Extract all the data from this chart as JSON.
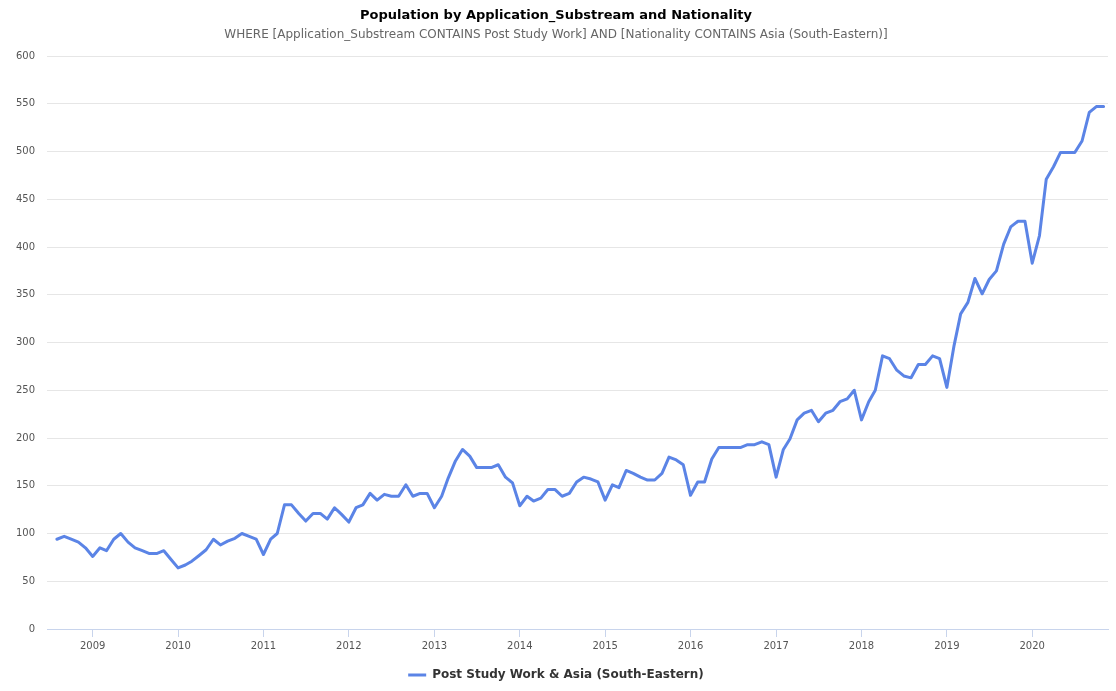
{
  "chart_data": {
    "type": "line",
    "title": "Population by Application_Substream and Nationality",
    "subtitle": "WHERE [Application_Substream CONTAINS Post Study Work] AND [Nationality CONTAINS Asia (South-Eastern)]",
    "x": [
      "2008-08",
      "2008-09",
      "2008-10",
      "2008-11",
      "2008-12",
      "2009-01",
      "2009-02",
      "2009-03",
      "2009-04",
      "2009-05",
      "2009-06",
      "2009-07",
      "2009-08",
      "2009-09",
      "2009-10",
      "2009-11",
      "2009-12",
      "2010-01",
      "2010-02",
      "2010-03",
      "2010-04",
      "2010-05",
      "2010-06",
      "2010-07",
      "2010-08",
      "2010-09",
      "2010-10",
      "2010-11",
      "2010-12",
      "2011-01",
      "2011-02",
      "2011-03",
      "2011-04",
      "2011-05",
      "2011-06",
      "2011-07",
      "2011-08",
      "2011-09",
      "2011-10",
      "2011-11",
      "2011-12",
      "2012-01",
      "2012-02",
      "2012-03",
      "2012-04",
      "2012-05",
      "2012-06",
      "2012-07",
      "2012-08",
      "2012-09",
      "2012-10",
      "2012-11",
      "2012-12",
      "2013-01",
      "2013-02",
      "2013-03",
      "2013-04",
      "2013-05",
      "2013-06",
      "2013-07",
      "2013-08",
      "2013-09",
      "2013-10",
      "2013-11",
      "2013-12",
      "2014-01",
      "2014-02",
      "2014-03",
      "2014-04",
      "2014-05",
      "2014-06",
      "2014-07",
      "2014-08",
      "2014-09",
      "2014-10",
      "2014-11",
      "2014-12",
      "2015-01",
      "2015-02",
      "2015-03",
      "2015-04",
      "2015-05",
      "2015-06",
      "2015-07",
      "2015-08",
      "2015-09",
      "2015-10",
      "2015-11",
      "2015-12",
      "2016-01",
      "2016-02",
      "2016-03",
      "2016-04",
      "2016-05",
      "2016-06",
      "2016-07",
      "2016-08",
      "2016-09",
      "2016-10",
      "2016-11",
      "2016-12",
      "2017-01",
      "2017-02",
      "2017-03",
      "2017-04",
      "2017-05",
      "2017-06",
      "2017-07",
      "2017-08",
      "2017-09",
      "2017-10",
      "2017-11",
      "2017-12",
      "2018-01",
      "2018-02",
      "2018-03",
      "2018-04",
      "2018-05",
      "2018-06",
      "2018-07",
      "2018-08",
      "2018-09",
      "2018-10",
      "2018-11",
      "2018-12",
      "2019-01",
      "2019-02",
      "2019-03",
      "2019-04",
      "2019-05",
      "2019-06",
      "2019-07",
      "2019-08",
      "2019-09",
      "2019-10",
      "2019-11",
      "2019-12",
      "2020-01",
      "2020-02",
      "2020-03",
      "2020-04",
      "2020-05",
      "2020-06",
      "2020-07",
      "2020-08",
      "2020-09",
      "2020-10",
      "2020-11"
    ],
    "series": [
      {
        "name": "Post Study Work & Asia (South-Eastern)",
        "color": "#5b84e6",
        "values": [
          94,
          97,
          94,
          91,
          85,
          76,
          85,
          82,
          94,
          100,
          91,
          85,
          82,
          79,
          79,
          82,
          73,
          64,
          67,
          71,
          77,
          83,
          94,
          88,
          92,
          95,
          100,
          97,
          94,
          78,
          94,
          100,
          130,
          130,
          121,
          113,
          121,
          121,
          115,
          127,
          120,
          112,
          127,
          130,
          142,
          135,
          141,
          139,
          139,
          151,
          139,
          142,
          142,
          127,
          139,
          158,
          176,
          188,
          181,
          169,
          169,
          169,
          172,
          159,
          153,
          129,
          139,
          134,
          137,
          146,
          146,
          139,
          142,
          154,
          159,
          157,
          154,
          135,
          151,
          148,
          166,
          163,
          159,
          156,
          156,
          163,
          180,
          177,
          172,
          140,
          154,
          154,
          178,
          190,
          190,
          190,
          190,
          193,
          193,
          196,
          193,
          159,
          188,
          199,
          219,
          226,
          229,
          217,
          226,
          229,
          238,
          241,
          250,
          219,
          238,
          250,
          286,
          283,
          271,
          265,
          263,
          277,
          277,
          286,
          283,
          253,
          297,
          330,
          342,
          367,
          351,
          366,
          375,
          403,
          421,
          427,
          427,
          383,
          412,
          471,
          484,
          499,
          499,
          499,
          511,
          541,
          547,
          547
        ]
      }
    ],
    "xlim": [
      "2008-06-20",
      "2020-11-20"
    ],
    "xticks": [
      "2009",
      "2010",
      "2011",
      "2012",
      "2013",
      "2014",
      "2015",
      "2016",
      "2017",
      "2018",
      "2019",
      "2020"
    ],
    "ylim": [
      0,
      600
    ],
    "yticks": [
      0,
      50,
      100,
      150,
      200,
      250,
      300,
      350,
      400,
      450,
      500,
      550,
      600
    ],
    "grid": "y",
    "legend": "bottom",
    "marker": "none",
    "line_style": "solid"
  }
}
